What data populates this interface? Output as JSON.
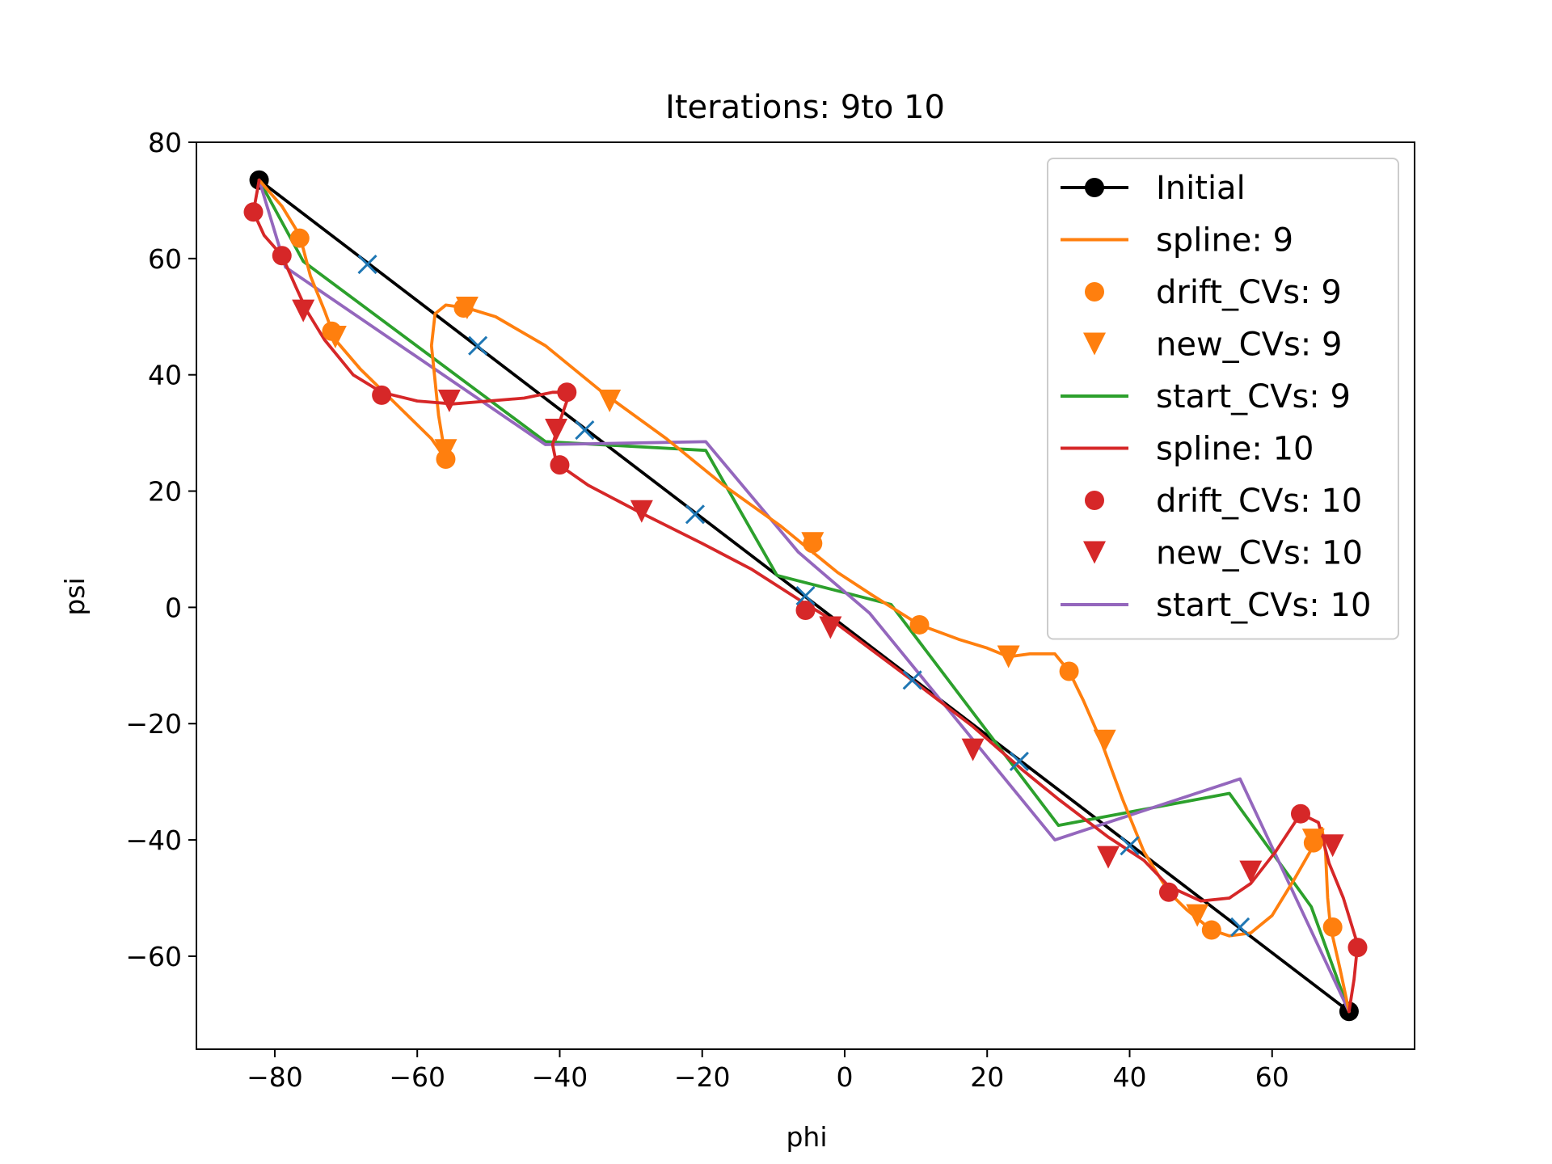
{
  "chart_data": {
    "type": "line",
    "title": "Iterations: 9to 10",
    "xlabel": "phi",
    "ylabel": "psi",
    "xlim": [
      -91,
      80
    ],
    "ylim": [
      -76,
      80
    ],
    "xticks": [
      -80,
      -60,
      -40,
      -20,
      0,
      20,
      40,
      60
    ],
    "yticks": [
      -60,
      -40,
      -20,
      0,
      20,
      40,
      60,
      80
    ],
    "xtick_labels": [
      "−80",
      "−60",
      "−40",
      "−20",
      "0",
      "20",
      "40",
      "60"
    ],
    "ytick_labels": [
      "−60",
      "−40",
      "−20",
      "0",
      "20",
      "40",
      "60",
      "80"
    ],
    "grid": false,
    "legend_position": "upper right",
    "colors": {
      "initial": "#000000",
      "iter9": "#ff7f0e",
      "start9": "#2ca02c",
      "iter10": "#d62728",
      "start10": "#9467bd",
      "crosses": "#1f77b4"
    },
    "series": [
      {
        "name": "Initial",
        "style": "line-marker",
        "color": "#000000",
        "marker": "circle",
        "x": [
          -82.2,
          70.8
        ],
        "y": [
          73.5,
          -69.5
        ]
      },
      {
        "name": "spline: 9",
        "style": "line",
        "color": "#ff7f0e",
        "x": [
          -82.2,
          -79,
          -76.5,
          -75,
          -73,
          -71.5,
          -68,
          -63,
          -58,
          -56,
          -57,
          -58,
          -57.5,
          -56,
          -53,
          -49,
          -42,
          -34,
          -25,
          -17,
          -9,
          -6,
          -1,
          4,
          10.5,
          16,
          20,
          23,
          26,
          29.5,
          31.5,
          33.5,
          36,
          39,
          42,
          45.5,
          48,
          51.5,
          54,
          57,
          60,
          63,
          65.8,
          67,
          67.5,
          67.8,
          68.2,
          69.5,
          70.8
        ],
        "y": [
          73.5,
          69,
          64,
          57,
          51,
          46,
          41,
          35,
          29,
          25.5,
          33,
          45,
          50.5,
          52,
          51.5,
          50,
          45,
          37,
          29,
          21,
          14,
          11,
          6,
          2,
          -3,
          -5.5,
          -7,
          -8.5,
          -8,
          -8,
          -11,
          -16,
          -23,
          -33,
          -42,
          -49,
          -52,
          -55.5,
          -56.5,
          -56,
          -53,
          -47,
          -41,
          -38,
          -42,
          -50,
          -55,
          -62,
          -69.5
        ]
      },
      {
        "name": "drift_CVs: 9",
        "style": "marker",
        "marker": "circle",
        "color": "#ff7f0e",
        "x": [
          -76.5,
          -72,
          -56,
          -53.5,
          -4.5,
          10.5,
          31.5,
          51.5,
          65.8,
          68.5
        ],
        "y": [
          63.5,
          47.5,
          25.5,
          51.5,
          11,
          -3,
          -11,
          -55.5,
          -40.5,
          -55
        ]
      },
      {
        "name": "new_CVs: 9",
        "style": "marker",
        "marker": "triangle_down",
        "color": "#ff7f0e",
        "x": [
          -71.5,
          -56,
          -53,
          -33,
          -4.5,
          23,
          36.5,
          49.5,
          65.8
        ],
        "y": [
          46.5,
          27,
          51.5,
          35.5,
          11,
          -8.5,
          -23,
          -53,
          -40
        ]
      },
      {
        "name": "start_CVs: 9",
        "style": "line",
        "color": "#2ca02c",
        "x": [
          -82.2,
          -76,
          -42,
          -19.5,
          -9.5,
          6.5,
          30,
          54,
          65.5,
          70.8
        ],
        "y": [
          73.5,
          59.5,
          28.5,
          27,
          5.5,
          0.5,
          -37.5,
          -32,
          -51.5,
          -69.5
        ]
      },
      {
        "name": "spline: 10",
        "style": "line",
        "color": "#d62728",
        "x": [
          -82.2,
          -83,
          -81.5,
          -79,
          -77,
          -75.5,
          -73,
          -69,
          -65,
          -60,
          -55,
          -50,
          -45,
          -41,
          -39.5,
          -39,
          -40,
          -41,
          -40.5,
          -39.5,
          -36,
          -29,
          -20,
          -13,
          -6,
          -2,
          4,
          10,
          18,
          25,
          30,
          37,
          42,
          45.5,
          50,
          54,
          57,
          60.5,
          64,
          66.5,
          68,
          70,
          72,
          71.5,
          70.8
        ],
        "y": [
          73.5,
          68,
          64,
          60.5,
          55,
          51,
          46,
          40,
          37,
          35.5,
          35,
          35.5,
          36,
          37,
          37,
          35.5,
          32,
          28,
          25,
          24,
          21,
          16.5,
          11,
          6.5,
          1,
          -2,
          -7.5,
          -13,
          -20.5,
          -28,
          -33,
          -39.5,
          -43.5,
          -48,
          -50.5,
          -50,
          -47.5,
          -42,
          -35.5,
          -37,
          -44,
          -50,
          -58,
          -64,
          -69.5
        ]
      },
      {
        "name": "drift_CVs: 10",
        "style": "marker",
        "marker": "circle",
        "color": "#d62728",
        "x": [
          -83,
          -79,
          -65,
          -39,
          -40,
          -5.5,
          45.5,
          64,
          72
        ],
        "y": [
          68,
          60.5,
          36.5,
          37,
          24.5,
          -0.5,
          -49,
          -35.5,
          -58.5
        ]
      },
      {
        "name": "new_CVs: 10",
        "style": "marker",
        "marker": "triangle_down",
        "color": "#d62728",
        "x": [
          -76,
          -55.5,
          -40.5,
          -28.5,
          -2,
          18,
          37,
          57,
          68.5
        ],
        "y": [
          51,
          35.5,
          30.5,
          16.5,
          -3.5,
          -24.5,
          -43,
          -45.5,
          -41
        ]
      },
      {
        "name": "start_CVs: 10",
        "style": "line",
        "color": "#9467bd",
        "x": [
          -82.2,
          -78.5,
          -42,
          -19.5,
          -6.5,
          3.5,
          29.5,
          55.5,
          70.8
        ],
        "y": [
          73.5,
          58.5,
          28,
          28.5,
          9.5,
          -1,
          -40,
          -29.5,
          -69.5
        ]
      },
      {
        "style": "marker",
        "marker": "x",
        "color": "#1f77b4",
        "x": [
          -67,
          -51.5,
          -36.5,
          -21,
          -5.5,
          9.5,
          24.5,
          40,
          55.5
        ],
        "y": [
          59,
          45,
          30.5,
          16,
          2,
          -12.5,
          -26.5,
          -41,
          -55
        ]
      }
    ]
  }
}
